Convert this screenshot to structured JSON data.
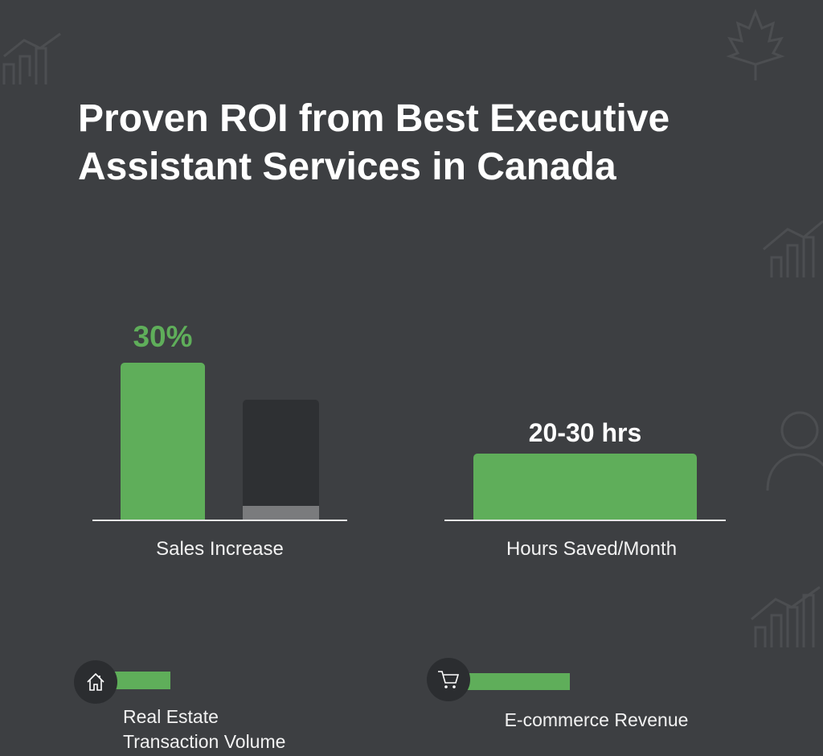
{
  "title": "Proven ROI from Best Executive Assistant Services in Canada",
  "colors": {
    "background": "#3d3f42",
    "accent": "#5fae5a",
    "comparison_bar": "#2e3033",
    "comparison_base": "#7a7b7d"
  },
  "chart_data": [
    {
      "type": "bar",
      "categories": [
        "Sales Increase"
      ],
      "values": [
        30
      ],
      "value_label": "30%",
      "xlabel": "Sales Increase"
    },
    {
      "type": "bar",
      "categories": [
        "Hours Saved/Month"
      ],
      "value_label": "20-30 hrs",
      "xlabel": "Hours Saved/Month"
    }
  ],
  "metrics": [
    {
      "icon": "house-icon",
      "label_line1": "Real Estate",
      "label_line2": "Transaction Volume"
    },
    {
      "icon": "cart-icon",
      "label": "E-commerce Revenue"
    }
  ]
}
